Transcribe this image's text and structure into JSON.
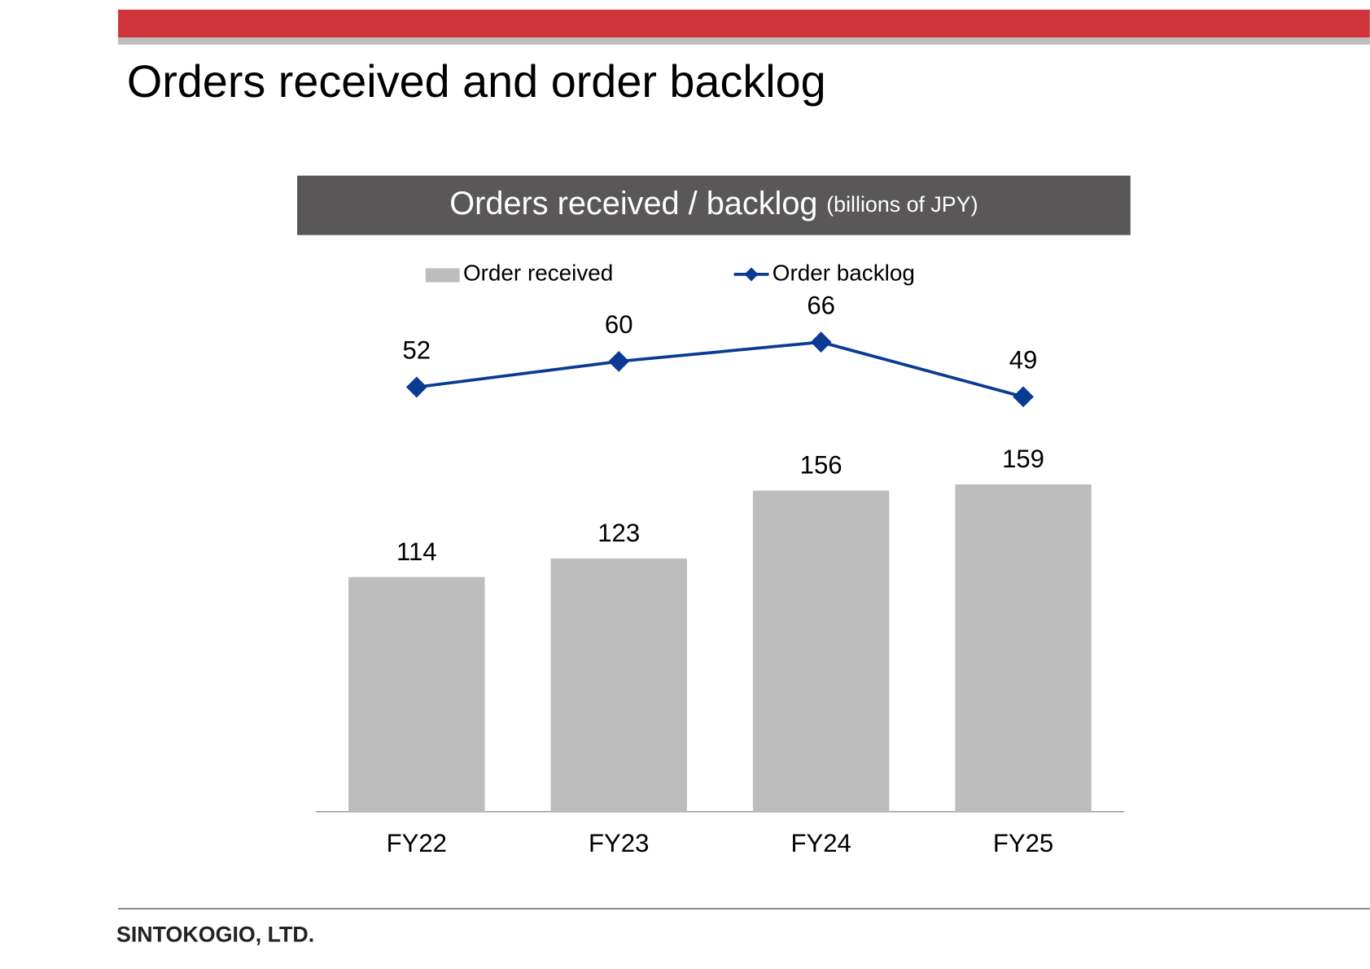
{
  "header": {
    "title": "Orders received and order backlog"
  },
  "footer": {
    "company": "SINTOKOGIO, LTD."
  },
  "chart_data": {
    "type": "combo",
    "title": "Orders received / backlog",
    "subtitle": "(billions of JPY)",
    "categories": [
      "FY22",
      "FY23",
      "FY24",
      "FY25"
    ],
    "series": [
      {
        "name": "Order received",
        "type": "bar",
        "color": "#bdbdbd",
        "values": [
          114,
          123,
          156,
          159
        ]
      },
      {
        "name": "Order backlog",
        "type": "line",
        "color": "#0a3a94",
        "axis": "y2",
        "values": [
          52,
          60,
          66,
          49
        ]
      }
    ],
    "ylim": [
      0,
      250
    ],
    "y2lim": [
      -80,
      80
    ],
    "grid": false
  }
}
